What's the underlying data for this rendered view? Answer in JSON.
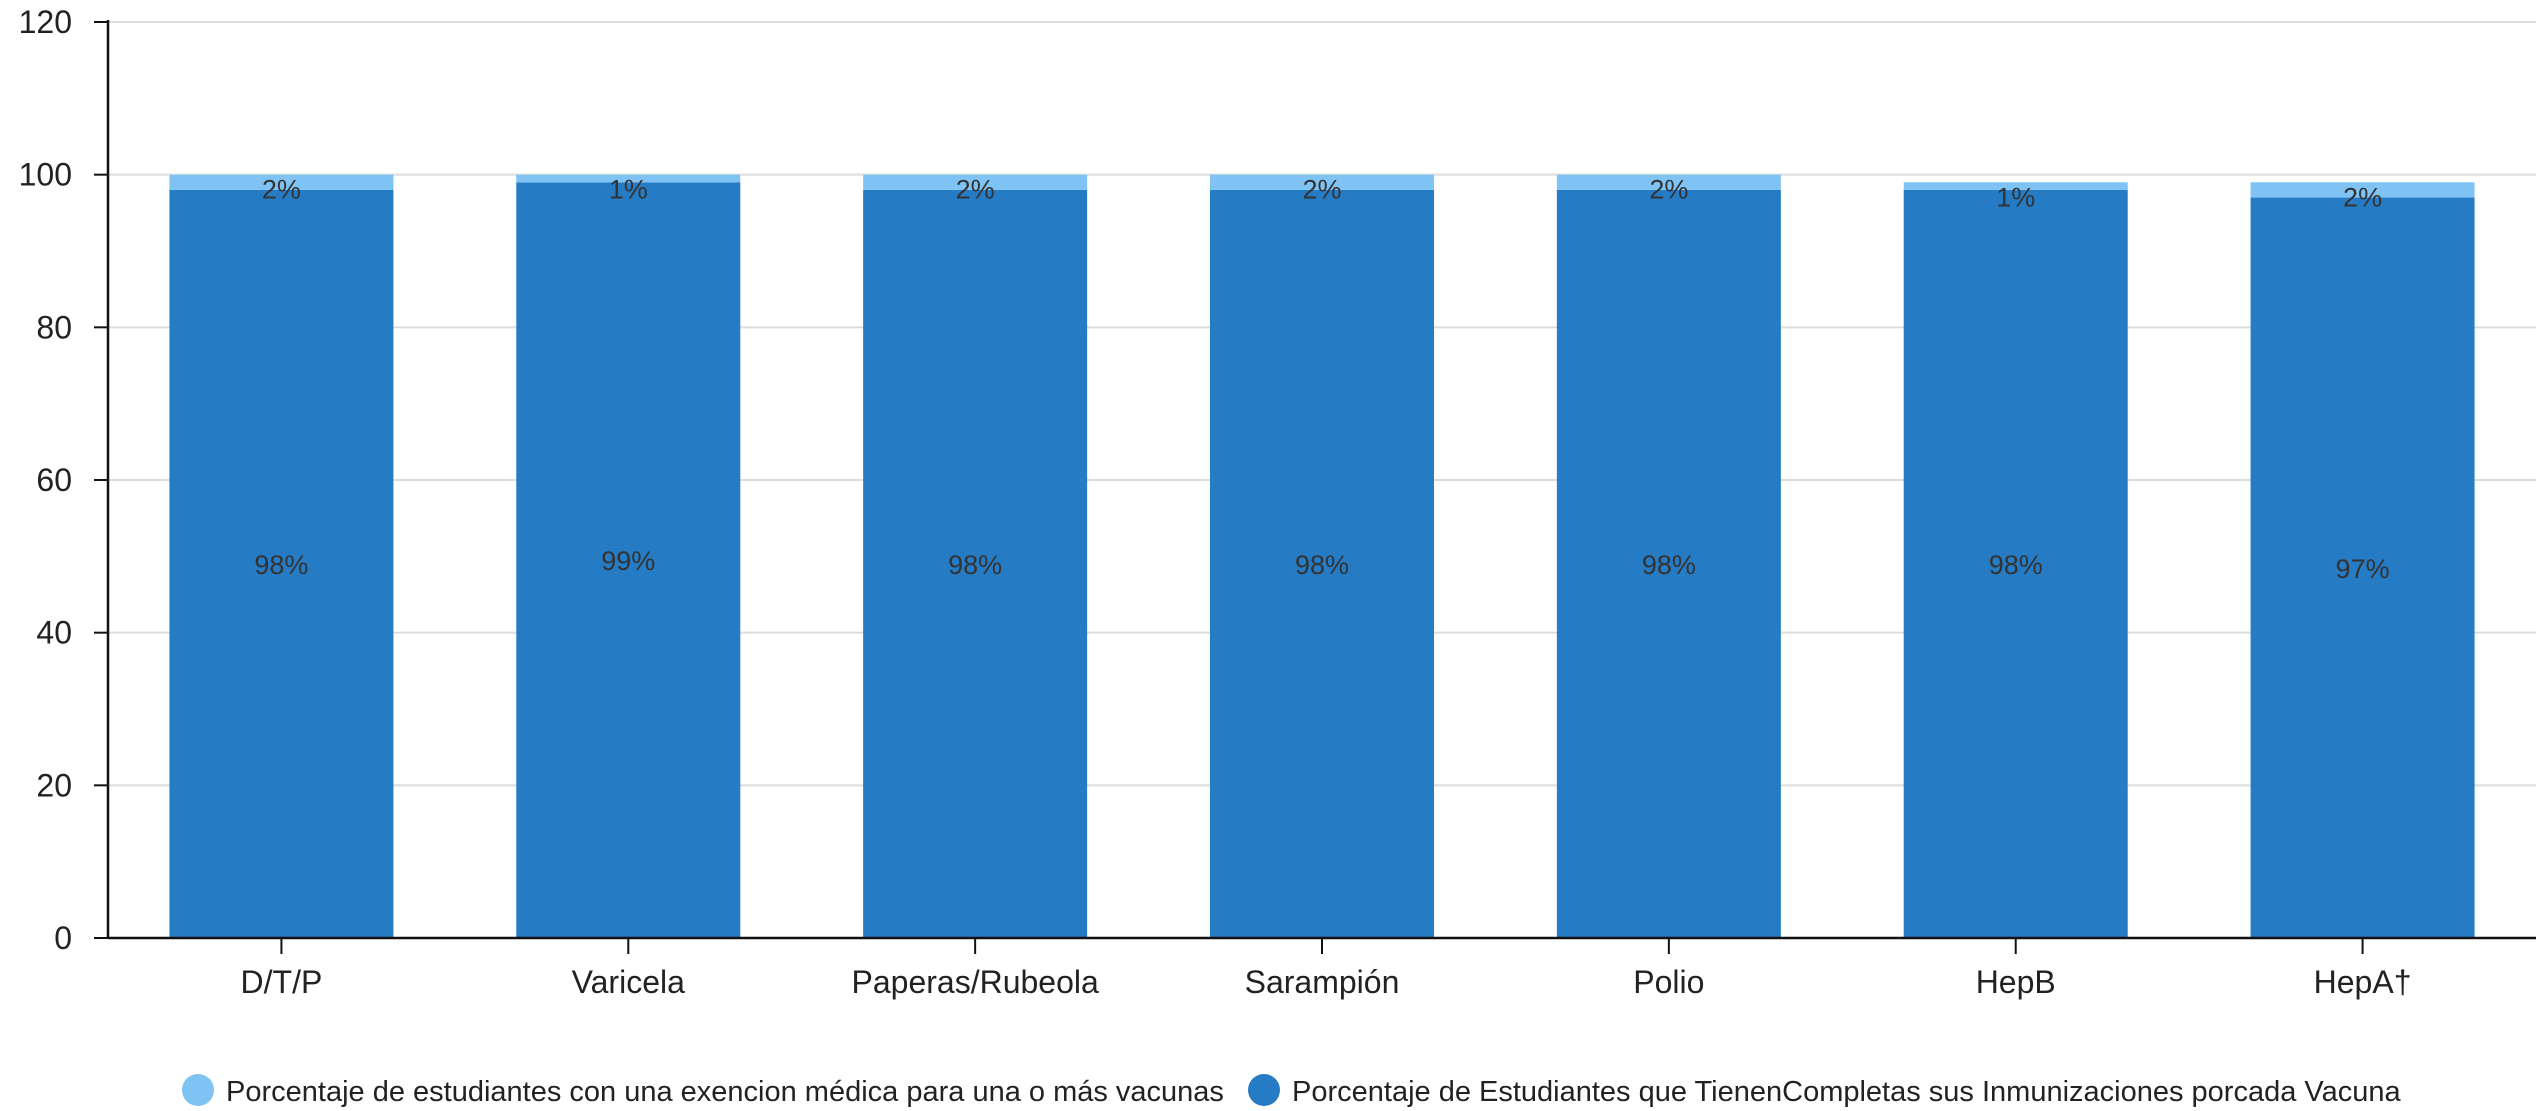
{
  "chart_data": {
    "type": "bar",
    "stacked": true,
    "categories": [
      "D/T/P",
      "Varicela",
      "Paperas/Rubeola",
      "Sarampión",
      "Polio",
      "HepB",
      "HepA†"
    ],
    "series": [
      {
        "name": "Porcentaje de Estudiantes que TienenCompletas sus Inmunizaciones porcada Vacuna",
        "values": [
          98,
          99,
          98,
          98,
          98,
          98,
          97
        ],
        "labels": [
          "98%",
          "99%",
          "98%",
          "98%",
          "98%",
          "98%",
          "97%"
        ],
        "color": "#267bc5"
      },
      {
        "name": "Porcentaje de estudiantes con una exencion médica para una o más vacunas",
        "values": [
          2,
          1,
          2,
          2,
          2,
          1,
          2
        ],
        "labels": [
          "2%",
          "1%",
          "2%",
          "2%",
          "2%",
          "1%",
          "2%"
        ],
        "color": "#7ec3f4"
      }
    ],
    "ylim": [
      0,
      120
    ],
    "yticks": [
      "0",
      "20",
      "40",
      "60",
      "80",
      "100",
      "120"
    ],
    "ytick_values": [
      0,
      20,
      40,
      60,
      80,
      100,
      120
    ],
    "grid": true,
    "legend_placement": "bottom",
    "legend_order": [
      1,
      0
    ],
    "title": "",
    "xlabel": "",
    "ylabel": ""
  }
}
